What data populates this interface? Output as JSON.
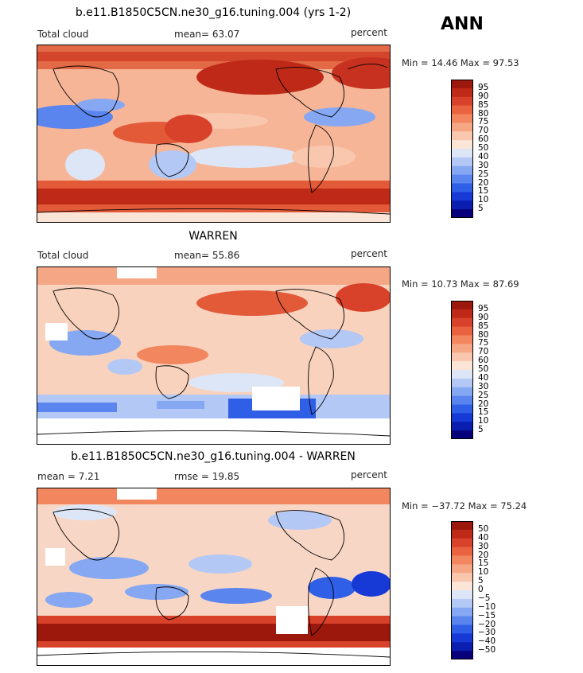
{
  "season": "ANN",
  "colors": {
    "seq": [
      "#08007a",
      "#0a1fb0",
      "#1739d6",
      "#2f5fe6",
      "#5a85ef",
      "#86a7f2",
      "#b3c8f5",
      "#dde6f7",
      "#fbe5d7",
      "#f8c7ad",
      "#f5a785",
      "#f2865f",
      "#ea6340",
      "#d8412a",
      "#bf2a18",
      "#9c180c"
    ],
    "div": [
      "#08007a",
      "#0a1fb0",
      "#1739d6",
      "#2f5fe6",
      "#5a85ef",
      "#86a7f2",
      "#b3c8f5",
      "#dde6f7",
      "#fbe5d7",
      "#f8c7ad",
      "#f5a785",
      "#f2865f",
      "#ea6340",
      "#d8412a",
      "#bf2a18",
      "#9c180c"
    ]
  },
  "panels": [
    {
      "title": "b.e11.B1850C5CN.ne30_g16.tuning.004 (yrs 1-2)",
      "left_label": "Total cloud",
      "mid_label": "mean=   63.07",
      "right_label": "percent",
      "minmax": "Min =   14.46  Max =   97.53",
      "colorbar_labels": [
        "95",
        "90",
        "85",
        "80",
        "75",
        "70",
        "60",
        "50",
        "40",
        "30",
        "25",
        "20",
        "15",
        "10",
        "5"
      ],
      "palette": "seq"
    },
    {
      "title": "WARREN",
      "left_label": "Total cloud",
      "mid_label": "mean=   55.86",
      "right_label": "percent",
      "minmax": "Min =   10.73  Max =   87.69",
      "colorbar_labels": [
        "95",
        "90",
        "85",
        "80",
        "75",
        "70",
        "60",
        "50",
        "40",
        "30",
        "25",
        "20",
        "15",
        "10",
        "5"
      ],
      "palette": "seq"
    },
    {
      "title": "b.e11.B1850C5CN.ne30_g16.tuning.004 - WARREN",
      "left_label": "mean =     7.21",
      "mid_label": "rmse =   19.85",
      "right_label": "percent",
      "minmax": "Min =  −37.72  Max =   75.24",
      "colorbar_labels": [
        "50",
        "40",
        "30",
        "20",
        "15",
        "10",
        "5",
        "0",
        "−5",
        "−10",
        "−15",
        "−20",
        "−30",
        "−40",
        "−50"
      ],
      "palette": "div"
    }
  ]
}
